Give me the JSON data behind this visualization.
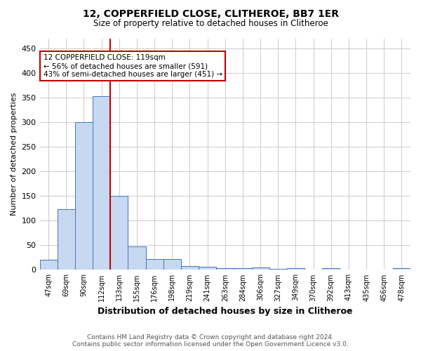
{
  "title": "12, COPPERFIELD CLOSE, CLITHEROE, BB7 1ER",
  "subtitle": "Size of property relative to detached houses in Clitheroe",
  "xlabel": "Distribution of detached houses by size in Clitheroe",
  "ylabel": "Number of detached properties",
  "footnote1": "Contains HM Land Registry data © Crown copyright and database right 2024.",
  "footnote2": "Contains public sector information licensed under the Open Government Licence v3.0.",
  "annotation_line1": "12 COPPERFIELD CLOSE: 119sqm",
  "annotation_line2": "← 56% of detached houses are smaller (591)",
  "annotation_line3": "43% of semi-detached houses are larger (451) →",
  "bar_labels": [
    "47sqm",
    "69sqm",
    "90sqm",
    "112sqm",
    "133sqm",
    "155sqm",
    "176sqm",
    "198sqm",
    "219sqm",
    "241sqm",
    "263sqm",
    "284sqm",
    "306sqm",
    "327sqm",
    "349sqm",
    "370sqm",
    "392sqm",
    "413sqm",
    "435sqm",
    "456sqm",
    "478sqm"
  ],
  "bar_values": [
    20,
    123,
    300,
    353,
    150,
    48,
    22,
    22,
    8,
    7,
    3,
    3,
    5,
    2,
    4,
    1,
    4,
    1,
    1,
    1,
    4
  ],
  "bar_color": "#c6d9f0",
  "bar_edge_color": "#4472c4",
  "red_line_x": 3.5,
  "red_line_color": "#c00000",
  "ylim": [
    0,
    470
  ],
  "yticks": [
    0,
    50,
    100,
    150,
    200,
    250,
    300,
    350,
    400,
    450
  ],
  "annotation_box_color": "#ffffff",
  "annotation_box_edge_color": "#c00000",
  "bg_color": "#ffffff",
  "grid_color": "#cccccc"
}
